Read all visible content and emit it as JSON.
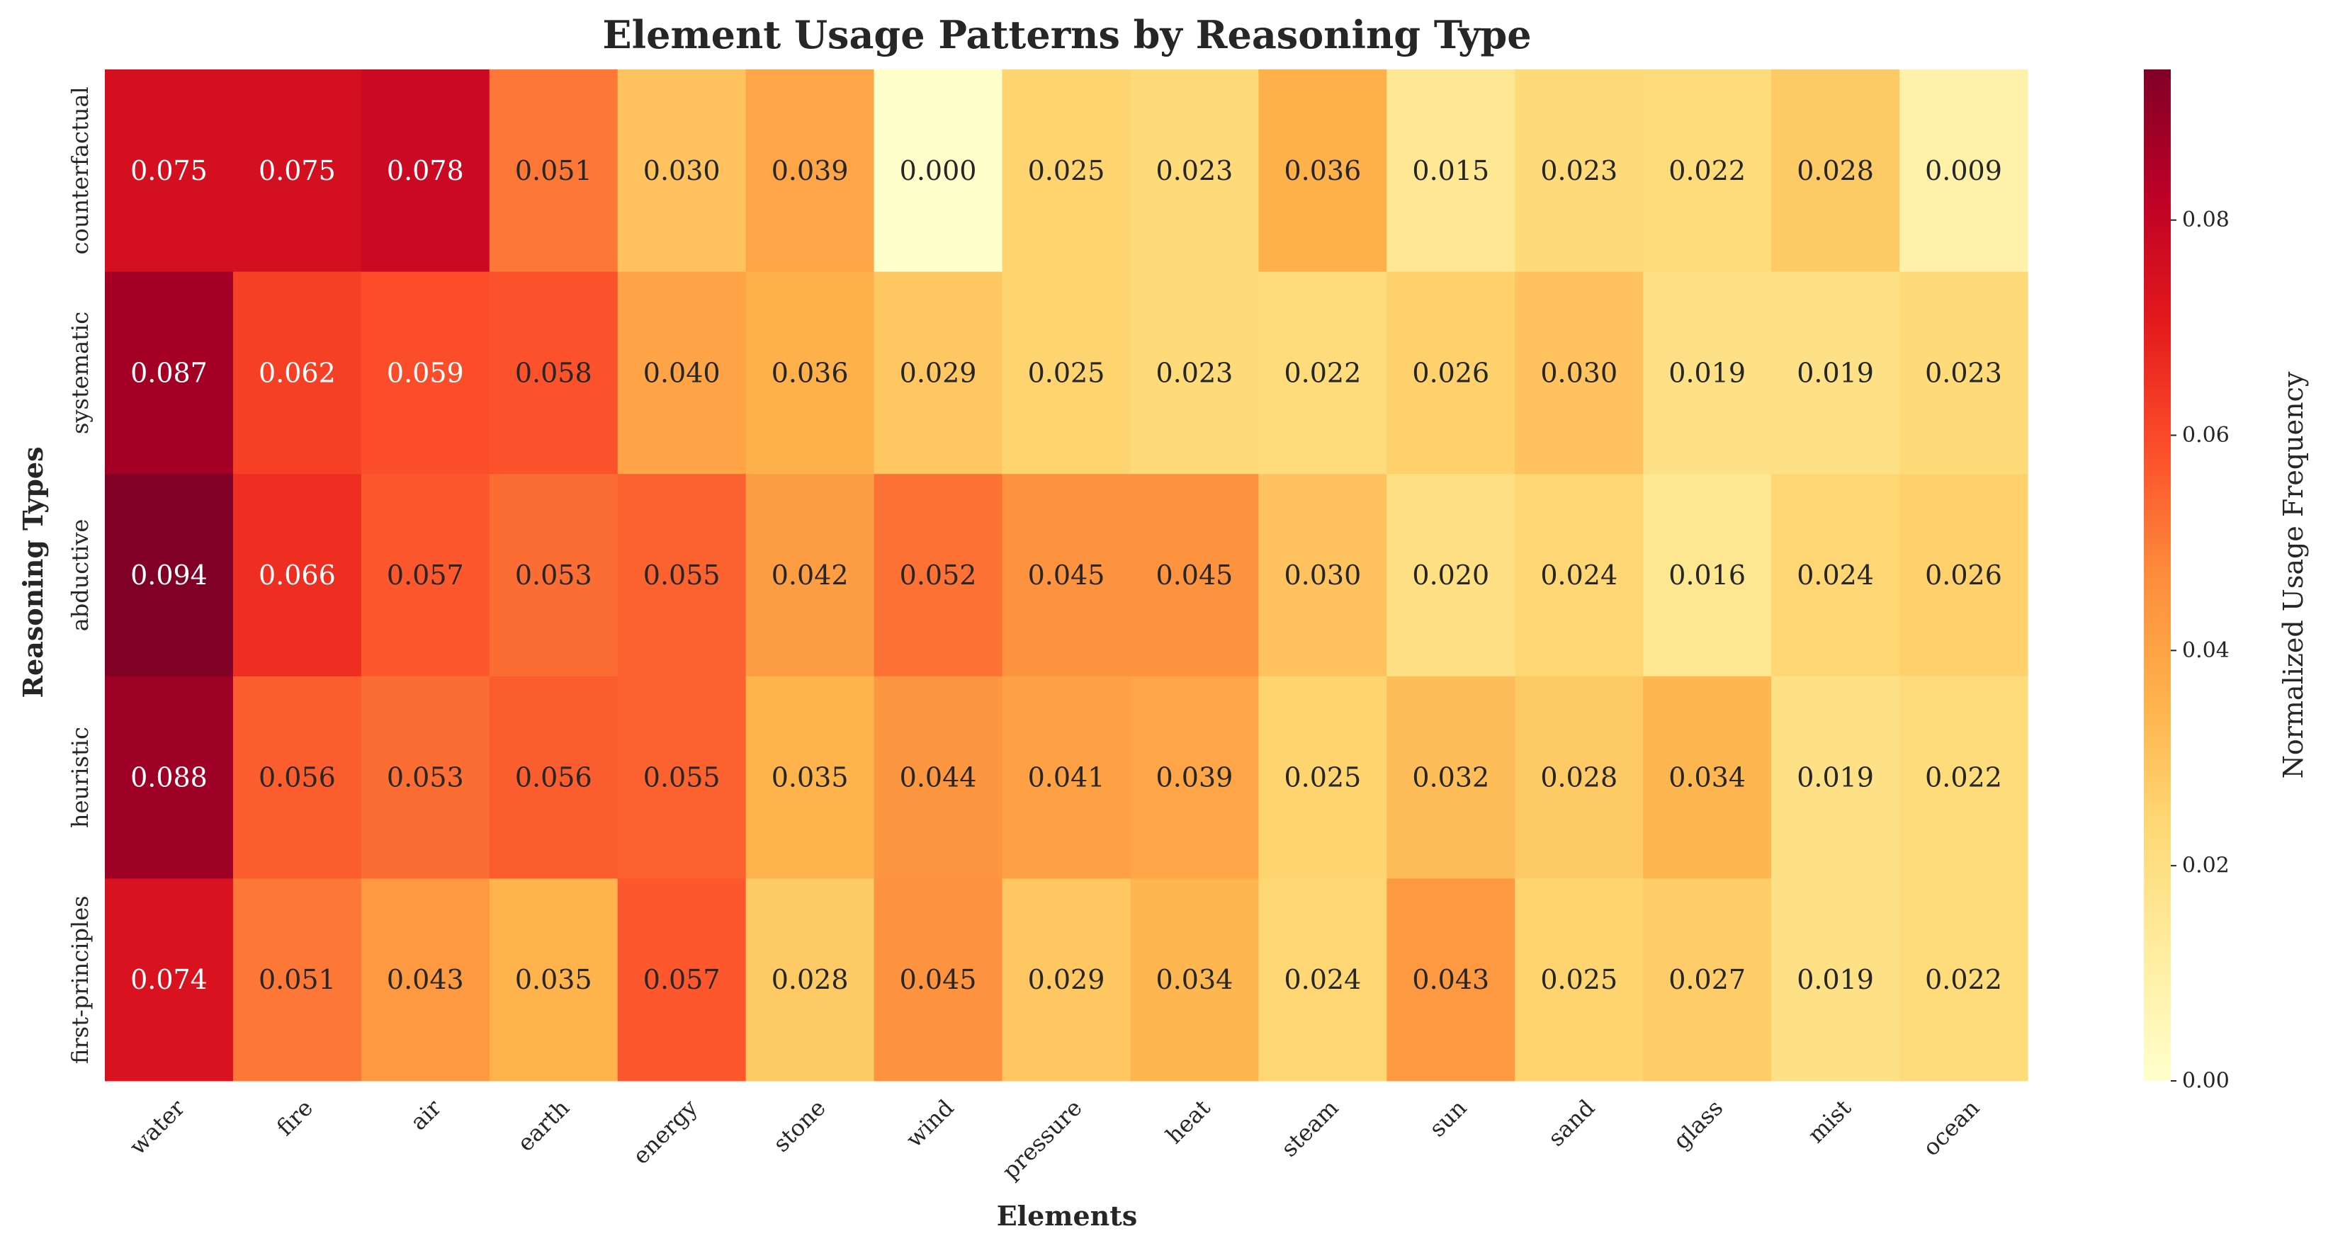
{
  "chart_data": {
    "type": "heatmap",
    "title": "Element Usage Patterns by Reasoning Type",
    "xlabel": "Elements",
    "ylabel": "Reasoning Types",
    "colorbar_label": "Normalized Usage Frequency",
    "colorbar_ticks": [
      "0.00",
      "0.02",
      "0.04",
      "0.06",
      "0.08"
    ],
    "colorbar_range": [
      0,
      0.094
    ],
    "colormap": "YlOrRd",
    "x_categories": [
      "water",
      "fire",
      "air",
      "earth",
      "energy",
      "stone",
      "wind",
      "pressure",
      "heat",
      "steam",
      "sun",
      "sand",
      "glass",
      "mist",
      "ocean"
    ],
    "y_categories": [
      "counterfactual",
      "systematic",
      "abductive",
      "heuristic",
      "first-principles"
    ],
    "values": [
      [
        0.075,
        0.075,
        0.078,
        0.051,
        0.03,
        0.039,
        0.0,
        0.025,
        0.023,
        0.036,
        0.015,
        0.023,
        0.022,
        0.028,
        0.009
      ],
      [
        0.087,
        0.062,
        0.059,
        0.058,
        0.04,
        0.036,
        0.029,
        0.025,
        0.023,
        0.022,
        0.026,
        0.03,
        0.019,
        0.019,
        0.023
      ],
      [
        0.094,
        0.066,
        0.057,
        0.053,
        0.055,
        0.042,
        0.052,
        0.045,
        0.045,
        0.03,
        0.02,
        0.024,
        0.016,
        0.024,
        0.026
      ],
      [
        0.088,
        0.056,
        0.053,
        0.056,
        0.055,
        0.035,
        0.044,
        0.041,
        0.039,
        0.025,
        0.032,
        0.028,
        0.034,
        0.019,
        0.022
      ],
      [
        0.074,
        0.051,
        0.043,
        0.035,
        0.057,
        0.028,
        0.045,
        0.029,
        0.034,
        0.024,
        0.043,
        0.025,
        0.027,
        0.019,
        0.022
      ]
    ],
    "value_format": "3 decimals",
    "grid": false
  }
}
